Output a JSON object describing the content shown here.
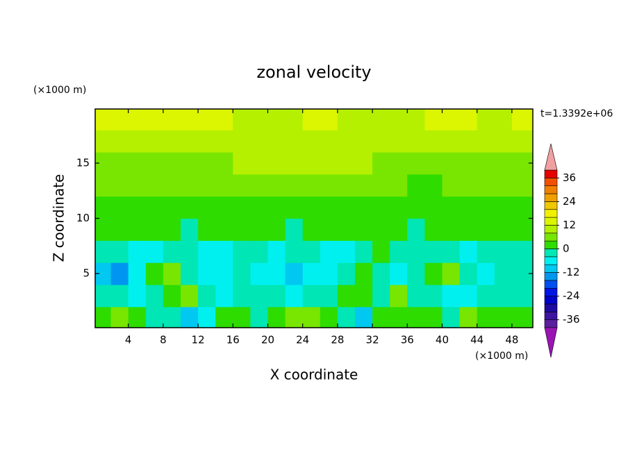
{
  "chart_data": {
    "type": "contour",
    "title": "zonal velocity",
    "annotation": "t=1.3392e+06",
    "x_label": "X coordinate",
    "y_label": "Z coordinate",
    "x_unit": "(×1000 m)",
    "y_unit": "(×1000 m)",
    "xlim": [
      0.2,
      50.4
    ],
    "ylim": [
      0.1,
      19.9
    ],
    "xticks": [
      4,
      8,
      12,
      16,
      20,
      24,
      28,
      32,
      36,
      40,
      44,
      48
    ],
    "yticks": [
      5,
      10,
      15
    ],
    "x": [
      1,
      3,
      5,
      7,
      9,
      11,
      13,
      15,
      17,
      19,
      21,
      23,
      25,
      27,
      29,
      31,
      33,
      35,
      37,
      39,
      41,
      43,
      45,
      47,
      49
    ],
    "y": [
      1,
      3,
      5,
      7,
      9,
      11,
      13,
      15,
      17,
      19
    ],
    "z": [
      [
        1,
        6,
        2,
        -2,
        -2,
        -10,
        -6,
        2,
        1,
        -2,
        2,
        6,
        6,
        2,
        -2,
        -10,
        2,
        2,
        2,
        1,
        -2,
        6,
        2,
        1,
        2
      ],
      [
        -2,
        -3,
        -6,
        -2,
        2,
        4,
        -2,
        -6,
        -3,
        -2,
        -3,
        -6,
        -3,
        -2,
        2,
        1,
        -2,
        6,
        -3,
        -2,
        -6,
        -8,
        -3,
        -2,
        -3
      ],
      [
        -10,
        -14,
        -6,
        1,
        6,
        -2,
        -7,
        -6,
        -3,
        -6,
        -5,
        -10,
        -6,
        -6,
        -2,
        1,
        -2,
        -6,
        -3,
        2,
        6,
        -2,
        -6,
        -3,
        -2
      ],
      [
        -3,
        -3,
        -6,
        -6,
        -2,
        -3,
        -6,
        -6,
        -2,
        -3,
        -6,
        -3,
        -2,
        -6,
        -6,
        -3,
        1,
        -2,
        -3,
        -3,
        -2,
        -6,
        -3,
        -2,
        -3
      ],
      [
        1,
        1,
        1,
        1,
        1,
        -2,
        1,
        1,
        1,
        1,
        1,
        -2,
        1,
        1,
        1,
        1,
        1,
        1,
        -2,
        1,
        1,
        1,
        1,
        1,
        1
      ],
      [
        3,
        3,
        3,
        3,
        3,
        3,
        3,
        3,
        3,
        3,
        3,
        3,
        3,
        3,
        3,
        3,
        3,
        2,
        2,
        2,
        2,
        3,
        3,
        3,
        3
      ],
      [
        6,
        6,
        6,
        6,
        6,
        6,
        6,
        6,
        6,
        6,
        6,
        6,
        6,
        6,
        6,
        6,
        6,
        6,
        3,
        2,
        6,
        6,
        6,
        6,
        6
      ],
      [
        6,
        6,
        6,
        6,
        6,
        6,
        6,
        6,
        10,
        10,
        10,
        11,
        11,
        11,
        10,
        10,
        6,
        6,
        6,
        6,
        6,
        6,
        6,
        6,
        6
      ],
      [
        10,
        10,
        10,
        10,
        10,
        10,
        10,
        10,
        10,
        10,
        9,
        9,
        10,
        10,
        9,
        9,
        9,
        9,
        9,
        9,
        10,
        10,
        10,
        10,
        10
      ],
      [
        14,
        14,
        13,
        13,
        14,
        14,
        13,
        13,
        11,
        10,
        10,
        10,
        13,
        13,
        11,
        10,
        10,
        10,
        10,
        13,
        14,
        14,
        10,
        10,
        13
      ]
    ],
    "levels": [
      -40,
      -36,
      -32,
      -28,
      -24,
      -20,
      -16,
      -12,
      -8,
      -4,
      0,
      4,
      8,
      12,
      16,
      20,
      24,
      28,
      32,
      36,
      40
    ],
    "colors": [
      "#9a14b4",
      "#5a1e9e",
      "#3c14a0",
      "#1e0aa0",
      "#0000c8",
      "#0014e6",
      "#0050f0",
      "#0096f0",
      "#00c8f0",
      "#00f0f0",
      "#00e6b4",
      "#2edc00",
      "#78e600",
      "#b4f000",
      "#dcf500",
      "#f0f000",
      "#f0c800",
      "#f0a000",
      "#f08000",
      "#f05000",
      "#e60000",
      "#f0a0a0"
    ],
    "colorbar_ticks": [
      -36,
      -24,
      -12,
      0,
      12,
      24,
      36
    ]
  }
}
